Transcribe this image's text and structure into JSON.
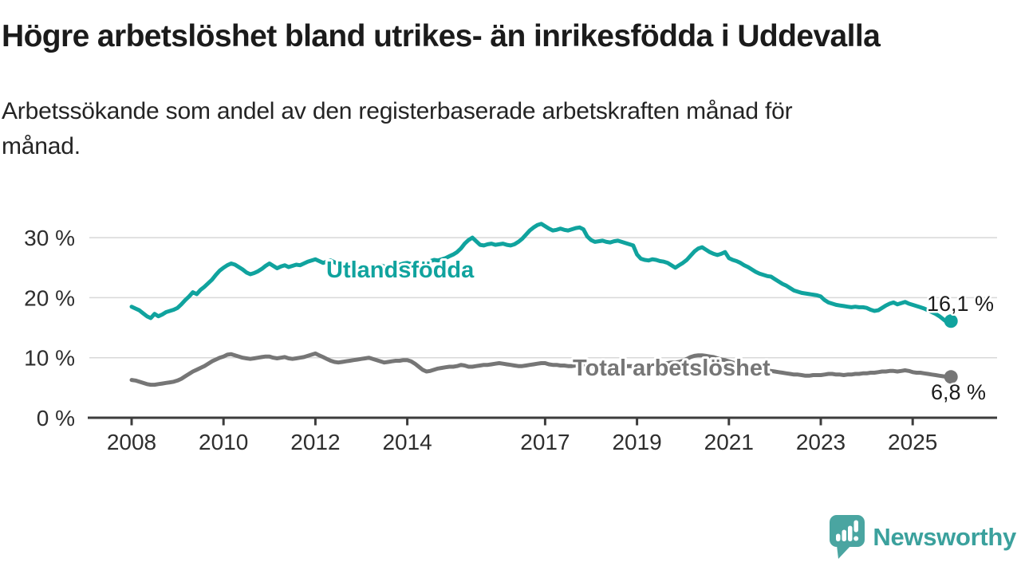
{
  "header": {
    "title": "Högre arbetslöshet bland utrikes- än inrikesfödda i Uddevalla",
    "subtitle_line1": "Arbetssökande som andel av den registerbaserade arbetskraften månad för",
    "subtitle_line2": "månad."
  },
  "chart_data": {
    "type": "line",
    "title": "Högre arbetslöshet bland utrikes- än inrikesfödda i Uddevalla",
    "subtitle": "Arbetssökande som andel av den registerbaserade arbetskraften månad för månad.",
    "unit": "%",
    "frequency": "monthly",
    "x_range": [
      "2008-01",
      "2025-11"
    ],
    "ylim": [
      0,
      33
    ],
    "grid": "horizontal",
    "legend_position": "inline-labels",
    "x_tick_years": [
      2008,
      2010,
      2012,
      2014,
      2017,
      2019,
      2021,
      2023,
      2025
    ],
    "y_ticks": [
      {
        "value": 0,
        "label": "0 %"
      },
      {
        "value": 10,
        "label": "10 %"
      },
      {
        "value": 20,
        "label": "20 %"
      },
      {
        "value": 30,
        "label": "30 %"
      }
    ],
    "series": [
      {
        "name": "Utlandsfödda",
        "color": "#10a39e",
        "end_label": "16,1 %",
        "end_value": 16.1,
        "values": [
          18.5,
          18.2,
          17.9,
          17.4,
          16.9,
          16.6,
          17.3,
          16.9,
          17.2,
          17.6,
          17.8,
          18.0,
          18.3,
          18.9,
          19.6,
          20.2,
          20.9,
          20.6,
          21.3,
          21.8,
          22.4,
          23.0,
          23.8,
          24.5,
          25.0,
          25.4,
          25.7,
          25.5,
          25.1,
          24.7,
          24.2,
          23.9,
          24.1,
          24.4,
          24.8,
          25.3,
          25.7,
          25.3,
          24.9,
          25.2,
          25.4,
          25.1,
          25.3,
          25.5,
          25.4,
          25.7,
          26.0,
          26.2,
          26.4,
          26.1,
          25.8,
          26.0,
          26.2,
          25.9,
          25.6,
          25.5,
          25.7,
          25.6,
          25.4,
          25.2,
          25.0,
          24.5,
          24.8,
          25.1,
          25.3,
          25.4,
          25.2,
          25.0,
          25.2,
          25.4,
          25.5,
          25.7,
          25.8,
          25.6,
          25.9,
          26.0,
          25.8,
          26.0,
          26.1,
          26.3,
          26.2,
          26.4,
          26.6,
          26.9,
          27.2,
          27.6,
          28.2,
          29.0,
          29.6,
          30.0,
          29.4,
          28.8,
          28.7,
          28.9,
          29.0,
          28.8,
          28.9,
          29.0,
          28.8,
          28.7,
          28.9,
          29.3,
          29.8,
          30.5,
          31.2,
          31.7,
          32.1,
          32.3,
          31.9,
          31.5,
          31.2,
          31.3,
          31.5,
          31.3,
          31.2,
          31.4,
          31.6,
          31.7,
          31.4,
          30.2,
          29.6,
          29.3,
          29.4,
          29.5,
          29.3,
          29.2,
          29.4,
          29.5,
          29.3,
          29.1,
          28.9,
          28.7,
          27.2,
          26.5,
          26.3,
          26.2,
          26.4,
          26.3,
          26.1,
          26.0,
          25.8,
          25.4,
          25.0,
          25.4,
          25.8,
          26.3,
          27.0,
          27.7,
          28.2,
          28.4,
          28.0,
          27.6,
          27.3,
          27.1,
          27.3,
          27.6,
          26.6,
          26.3,
          26.1,
          25.8,
          25.4,
          25.1,
          24.7,
          24.3,
          24.0,
          23.8,
          23.6,
          23.5,
          23.1,
          22.7,
          22.3,
          22.0,
          21.6,
          21.2,
          21.0,
          20.8,
          20.7,
          20.6,
          20.5,
          20.4,
          20.2,
          19.6,
          19.2,
          19.0,
          18.8,
          18.7,
          18.6,
          18.5,
          18.4,
          18.5,
          18.4,
          18.4,
          18.3,
          18.0,
          17.8,
          17.9,
          18.3,
          18.7,
          19.0,
          19.2,
          18.9,
          19.1,
          19.3,
          19.0,
          18.8,
          18.6,
          18.4,
          18.2,
          17.9,
          17.6,
          17.3,
          16.9,
          16.4,
          15.9,
          16.1
        ]
      },
      {
        "name": "Total arbetslöshet",
        "color": "#767676",
        "end_label": "6,8 %",
        "end_value": 6.8,
        "values": [
          6.3,
          6.2,
          6.0,
          5.8,
          5.6,
          5.5,
          5.5,
          5.6,
          5.7,
          5.8,
          5.9,
          6.0,
          6.2,
          6.5,
          6.9,
          7.3,
          7.7,
          8.0,
          8.3,
          8.6,
          9.0,
          9.4,
          9.7,
          10.0,
          10.2,
          10.5,
          10.6,
          10.4,
          10.2,
          10.0,
          9.9,
          9.8,
          9.9,
          10.0,
          10.1,
          10.2,
          10.2,
          10.0,
          9.9,
          10.0,
          10.1,
          9.9,
          9.8,
          9.9,
          10.0,
          10.1,
          10.3,
          10.5,
          10.7,
          10.4,
          10.1,
          9.8,
          9.5,
          9.3,
          9.2,
          9.3,
          9.4,
          9.5,
          9.6,
          9.7,
          9.8,
          9.9,
          10.0,
          9.8,
          9.6,
          9.4,
          9.2,
          9.3,
          9.4,
          9.5,
          9.5,
          9.6,
          9.6,
          9.4,
          9.0,
          8.5,
          8.0,
          7.7,
          7.8,
          8.0,
          8.2,
          8.3,
          8.4,
          8.5,
          8.5,
          8.6,
          8.8,
          8.7,
          8.5,
          8.5,
          8.6,
          8.7,
          8.8,
          8.8,
          8.9,
          9.0,
          9.1,
          9.0,
          8.9,
          8.8,
          8.7,
          8.6,
          8.6,
          8.7,
          8.8,
          8.9,
          9.0,
          9.1,
          9.1,
          8.9,
          8.8,
          8.8,
          8.7,
          8.7,
          8.6,
          8.6,
          8.7,
          8.7,
          8.6,
          8.6,
          8.6,
          8.5,
          8.4,
          8.4,
          8.3,
          8.4,
          8.4,
          8.5,
          8.5,
          8.6,
          8.6,
          8.6,
          8.6,
          8.7,
          8.7,
          8.8,
          8.9,
          8.9,
          9.0,
          9.0,
          9.1,
          9.2,
          9.2,
          9.3,
          9.5,
          9.8,
          10.1,
          10.3,
          10.4,
          10.4,
          10.3,
          10.2,
          10.1,
          9.9,
          9.7,
          9.6,
          9.4,
          9.2,
          9.0,
          8.8,
          8.7,
          8.5,
          8.4,
          8.2,
          8.1,
          8.0,
          7.9,
          7.8,
          7.7,
          7.6,
          7.5,
          7.4,
          7.3,
          7.2,
          7.2,
          7.1,
          7.0,
          7.0,
          7.1,
          7.1,
          7.1,
          7.2,
          7.3,
          7.3,
          7.2,
          7.2,
          7.1,
          7.2,
          7.2,
          7.3,
          7.3,
          7.4,
          7.4,
          7.5,
          7.5,
          7.6,
          7.7,
          7.7,
          7.8,
          7.8,
          7.7,
          7.8,
          7.9,
          7.8,
          7.6,
          7.5,
          7.5,
          7.4,
          7.3,
          7.2,
          7.1,
          7.0,
          6.9,
          6.8,
          6.8
        ]
      }
    ],
    "colors": {
      "grid": "#d8d8d8",
      "axis": "#3c3c3c",
      "annotation_text": "#1b1b1b"
    }
  },
  "footer": {
    "brand": "Newsworthy",
    "brand_color": "#3ba19d"
  }
}
